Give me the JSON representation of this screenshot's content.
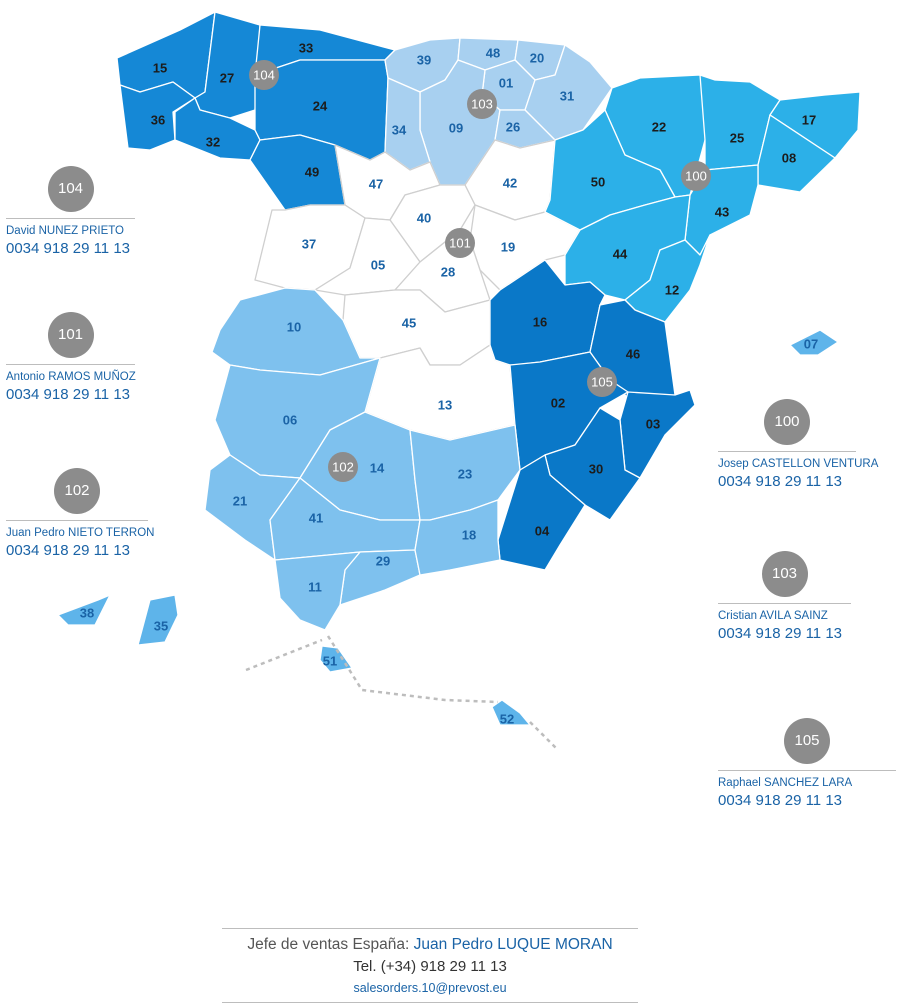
{
  "colors": {
    "zone_104": "#1588d6",
    "zone_103": "#a8d0f0",
    "zone_101": "#ffffff",
    "zone_100": "#2cb0e8",
    "zone_105": "#0a78c8",
    "zone_102": "#7ec1ee",
    "islands": "#5eb4ea",
    "label_dark": "#1c1c1c",
    "label_blue": "#1a63a6",
    "badge_grey": "#8c8c8c"
  },
  "zones": [
    {
      "code": "104",
      "provinces": [
        "15",
        "27",
        "33",
        "36",
        "32",
        "24",
        "49"
      ]
    },
    {
      "code": "103",
      "provinces": [
        "39",
        "48",
        "20",
        "01",
        "31",
        "09",
        "26",
        "34"
      ]
    },
    {
      "code": "101",
      "provinces": [
        "47",
        "42",
        "40",
        "37",
        "05",
        "19",
        "28",
        "45",
        "13"
      ]
    },
    {
      "code": "100",
      "provinces": [
        "22",
        "25",
        "17",
        "08",
        "50",
        "43",
        "44",
        "12"
      ]
    },
    {
      "code": "105",
      "provinces": [
        "16",
        "46",
        "02",
        "03",
        "30",
        "04"
      ]
    },
    {
      "code": "102",
      "provinces": [
        "10",
        "06",
        "14",
        "23",
        "21",
        "41",
        "29",
        "18",
        "11"
      ]
    },
    {
      "code": "islands",
      "provinces": [
        "07",
        "38",
        "35",
        "51",
        "52"
      ]
    }
  ],
  "province_labels": [
    "15",
    "27",
    "33",
    "36",
    "32",
    "24",
    "49",
    "39",
    "48",
    "20",
    "01",
    "31",
    "09",
    "26",
    "34",
    "47",
    "42",
    "40",
    "37",
    "05",
    "19",
    "28",
    "45",
    "13",
    "22",
    "25",
    "17",
    "08",
    "50",
    "43",
    "44",
    "12",
    "16",
    "46",
    "02",
    "03",
    "30",
    "04",
    "10",
    "06",
    "14",
    "23",
    "21",
    "41",
    "29",
    "18",
    "11",
    "07",
    "38",
    "35",
    "51",
    "52"
  ],
  "map_badges": [
    "104",
    "103",
    "101",
    "100",
    "105",
    "102"
  ],
  "agents": [
    {
      "code": "104",
      "name": "David NUNEZ PRIETO",
      "phone": "0034 918 29 11 13"
    },
    {
      "code": "101",
      "name": "Antonio RAMOS MUÑOZ",
      "phone": "0034 918 29 11 13"
    },
    {
      "code": "102",
      "name": "Juan Pedro NIETO TERRON",
      "phone": "0034 918 29 11 13"
    },
    {
      "code": "100",
      "name": "Josep CASTELLON VENTURA",
      "phone": "0034 918 29 11 13"
    },
    {
      "code": "103",
      "name": "Cristian AVILA SAINZ",
      "phone": "0034 918 29 11 13"
    },
    {
      "code": "105",
      "name": "Raphael SANCHEZ LARA",
      "phone": "0034 918 29 11 13"
    }
  ],
  "footer": {
    "label": "Jefe de ventas España:",
    "manager": "Juan Pedro LUQUE MORAN",
    "phone": "Tel. (+34) 918 29 11 13",
    "email": "salesorders.10@prevost.eu"
  }
}
